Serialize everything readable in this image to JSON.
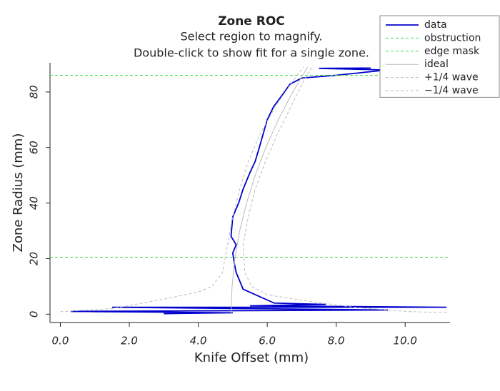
{
  "chart_data": {
    "type": "line",
    "title": "Zone ROC",
    "subtitle": [
      "Select region to magnify.",
      "Double-click to show fit for a single zone."
    ],
    "x_label": "Knife Offset (mm)",
    "y_label": "Zone Radius (mm)",
    "xlim": [
      -0.3,
      11.3
    ],
    "ylim": [
      -3,
      90.5
    ],
    "xticks": [
      {
        "value": 0,
        "label": "0.0"
      },
      {
        "value": 2,
        "label": "2.0"
      },
      {
        "value": 4,
        "label": "4.0"
      },
      {
        "value": 6,
        "label": "6.0"
      },
      {
        "value": 8,
        "label": "8.0"
      },
      {
        "value": 10,
        "label": "10.0"
      }
    ],
    "yticks": [
      0,
      20,
      40,
      60,
      80
    ],
    "legend": "upper right",
    "series": [
      {
        "name": "data",
        "color": "#0000cc",
        "dash": "none",
        "x": [
          3.0,
          5.0,
          0.3,
          9.5,
          1.5,
          11.2,
          5.5,
          7.7,
          6.2,
          5.3,
          5.1,
          5.05,
          5.0,
          5.1,
          4.95,
          5.0,
          5.17,
          5.3,
          5.5,
          5.65,
          5.77,
          6.0,
          6.18,
          6.5,
          6.66,
          7.0,
          8.0,
          9.45,
          8.5,
          7.5,
          9.0
        ],
        "values": [
          0.2,
          0.5,
          1.0,
          1.5,
          2.5,
          2.5,
          3.0,
          3.5,
          4.0,
          9.0,
          15.0,
          18.0,
          22.0,
          25.0,
          28.0,
          35.0,
          40.0,
          45.0,
          51.0,
          55.0,
          60.0,
          70.0,
          74.6,
          80.0,
          82.8,
          85.0,
          86.0,
          87.9,
          88.2,
          88.5,
          88.6
        ]
      },
      {
        "name": "obstruction",
        "color": "#44dd44",
        "dash": "4 3",
        "x": [
          -0.3,
          11.3
        ],
        "values": [
          20.5,
          20.5
        ]
      },
      {
        "name": "edge mask",
        "color": "#44dd44",
        "dash": "4 3",
        "x": [
          -0.3,
          11.3
        ],
        "values": [
          86,
          86
        ]
      },
      {
        "name": "ideal",
        "color": "#bbbbbb",
        "dash": "none",
        "x": [
          4.95,
          4.98,
          5.06,
          5.2,
          5.4,
          5.65,
          5.96,
          6.32,
          6.74,
          7.17
        ],
        "values": [
          0,
          10,
          20,
          30,
          40,
          50,
          60,
          70,
          80,
          89
        ]
      },
      {
        "name": "+1/4 wave",
        "color": "#bbbbbb",
        "dash": "4 3",
        "x": [
          0.0,
          1.5,
          3.0,
          4.0,
          4.4,
          4.7,
          4.85,
          5.0,
          5.2,
          5.45,
          5.8,
          6.25,
          6.8,
          7.05
        ],
        "values": [
          0.9,
          2,
          5.4,
          8,
          10,
          15,
          25,
          35,
          45,
          55,
          65,
          75,
          85,
          89
        ]
      },
      {
        "name": "−1/4 wave",
        "color": "#bbbbbb",
        "dash": "4 3",
        "x": [
          11.2,
          10.0,
          8.5,
          7.0,
          6.0,
          5.55,
          5.35,
          5.3,
          5.45,
          5.65,
          5.95,
          6.3,
          6.7,
          7.1,
          7.3
        ],
        "values": [
          0.5,
          1,
          2.5,
          5,
          7,
          10,
          15,
          25,
          35,
          45,
          55,
          65,
          75,
          85,
          89
        ]
      }
    ]
  }
}
